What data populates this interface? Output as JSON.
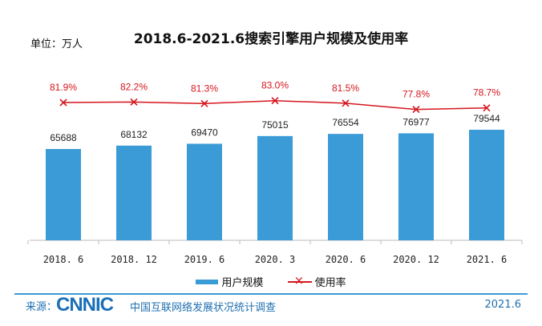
{
  "chart_data": {
    "type": "bar+line",
    "title": "2018.6-2021.6搜索引擎用户规模及使用率",
    "unit_label": "单位：万人",
    "categories": [
      "2018. 6",
      "2018. 12",
      "2019. 6",
      "2020. 3",
      "2020. 6",
      "2020. 12",
      "2021. 6"
    ],
    "series": [
      {
        "name": "用户规模",
        "type": "bar",
        "color": "#3b9bd6",
        "values": [
          65688,
          68132,
          69470,
          75015,
          76554,
          76977,
          79544
        ],
        "labels": [
          "65688",
          "68132",
          "69470",
          "75015",
          "76554",
          "76977",
          "79544"
        ]
      },
      {
        "name": "使用率",
        "type": "line",
        "color": "#d5161e",
        "marker": "x",
        "values": [
          81.9,
          82.2,
          81.3,
          83.0,
          81.5,
          77.8,
          78.7
        ],
        "labels": [
          "81.9%",
          "82.2%",
          "81.3%",
          "83.0%",
          "81.5%",
          "77.8%",
          "78.7%"
        ]
      }
    ],
    "legend": "bottom",
    "grid": false
  },
  "footer": {
    "source_label": "来源：",
    "logo": "CNNIC",
    "org": "中国互联网络发展状况统计调查",
    "date": "2021.6"
  }
}
